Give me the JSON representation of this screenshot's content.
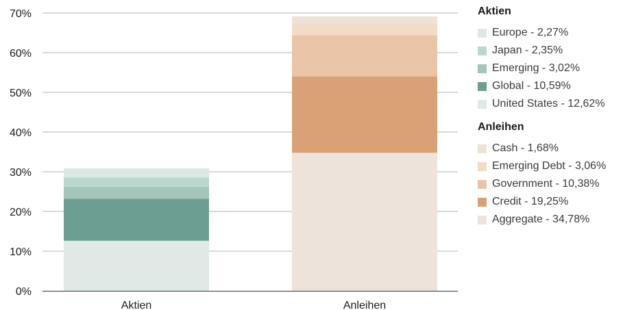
{
  "chart_data": {
    "type": "bar",
    "stacked": true,
    "categories": [
      "Aktien",
      "Anleihen"
    ],
    "y_axis": {
      "ylim": [
        0,
        70
      ],
      "ticks": [
        "0%",
        "10%",
        "20%",
        "30%",
        "40%",
        "50%",
        "60%",
        "70%"
      ]
    },
    "grid": true,
    "legend_position": "right",
    "groups": [
      {
        "title": "Aktien",
        "category": "Aktien",
        "series": [
          {
            "name": "Europe",
            "value": 2.27,
            "label": "Europe - 2,27%",
            "color": "#dbe8e3"
          },
          {
            "name": "Japan",
            "value": 2.35,
            "label": "Japan - 2,35%",
            "color": "#bcd7cd"
          },
          {
            "name": "Emerging",
            "value": 3.02,
            "label": "Emerging - 3,02%",
            "color": "#a2c6b8"
          },
          {
            "name": "Global",
            "value": 10.59,
            "label": "Global - 10,59%",
            "color": "#6c9f91"
          },
          {
            "name": "United States",
            "value": 12.62,
            "label": "United States - 12,62%",
            "color": "#dfe9e5"
          }
        ]
      },
      {
        "title": "Anleihen",
        "category": "Anleihen",
        "series": [
          {
            "name": "Cash",
            "value": 1.68,
            "label": "Cash - 1,68%",
            "color": "#ede2d6"
          },
          {
            "name": "Emerging Debt",
            "value": 3.06,
            "label": "Emerging Debt - 3,06%",
            "color": "#f3dcc6"
          },
          {
            "name": "Government",
            "value": 10.38,
            "label": "Government - 10,38%",
            "color": "#e9c4a6"
          },
          {
            "name": "Credit",
            "value": 19.25,
            "label": "Credit - 19,25%",
            "color": "#d8a176"
          },
          {
            "name": "Aggregate",
            "value": 34.78,
            "label": "Aggregate - 34,78%",
            "color": "#ede3da"
          }
        ]
      }
    ]
  }
}
